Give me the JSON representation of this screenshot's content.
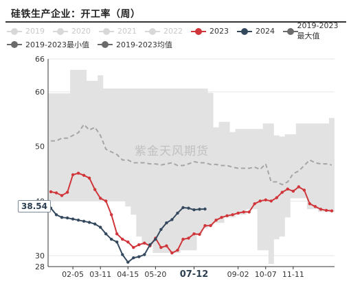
{
  "title": "硅铁生产企业：开工率（周）",
  "watermark": "紫金天风期货",
  "value_badge": "38.54",
  "colors": {
    "band": "#e2e2e2",
    "avg": "#a5a5a5",
    "s2023": "#d0353a",
    "s2024": "#34495e",
    "grid": "#e6e6e6",
    "axis": "#333333",
    "legend_off": "#c8c8c8",
    "legend_max": "#6b6b6b"
  },
  "legend": [
    {
      "name": "2019",
      "state": "off"
    },
    {
      "name": "2020",
      "state": "off"
    },
    {
      "name": "2021",
      "state": "off"
    },
    {
      "name": "2022",
      "state": "off"
    },
    {
      "name": "2023",
      "state": "on",
      "color": "#d0353a"
    },
    {
      "name": "2024",
      "state": "on",
      "color": "#34495e"
    },
    {
      "name": "2019-2023最大值",
      "state": "on",
      "color": "#6b6b6b"
    },
    {
      "name": "2019-2023最小值",
      "state": "on",
      "color": "#6b6b6b"
    },
    {
      "name": "2019-2023均值",
      "state": "on",
      "color": "#6b6b6b"
    }
  ],
  "chart_data": {
    "type": "line",
    "title": "硅铁生产企业：开工率（周）",
    "y_axis": {
      "min": 28,
      "max": 66,
      "ticks": [
        28,
        30,
        40,
        50,
        60,
        66
      ]
    },
    "x_axis": {
      "points": 52,
      "tick_labels": [
        "02-05",
        "03-11",
        "04-15",
        "05-20",
        "07-12",
        "09-02",
        "10-07",
        "11-11"
      ],
      "tick_index": [
        4,
        9,
        14,
        19,
        26,
        34,
        39,
        44
      ],
      "highlighted": "07-12"
    },
    "series": [
      {
        "name": "2019-2023最大值",
        "type": "band-upper",
        "values": [
          59.7,
          59.7,
          59.7,
          59.7,
          64,
          64,
          64,
          62,
          62,
          63,
          60.6,
          60.6,
          60.6,
          60.6,
          60.6,
          60.6,
          60.6,
          60.6,
          60.6,
          60.6,
          60.6,
          60.6,
          60.6,
          60.6,
          60.6,
          60.6,
          60.6,
          60.6,
          60.6,
          59.8,
          53.5,
          54.5,
          54.5,
          52.6,
          53.2,
          53.2,
          53.2,
          53.2,
          53.2,
          54.2,
          54.2,
          52,
          51.8,
          52.2,
          52.2,
          54.2,
          54.2,
          54.2,
          54.2,
          54.2,
          54.2,
          55.2
        ]
      },
      {
        "name": "2019-2023最小值",
        "type": "band-lower",
        "values": [
          40,
          40,
          40,
          40,
          40,
          40,
          40,
          40,
          40,
          40,
          40,
          40,
          40,
          40,
          39,
          37.5,
          33.5,
          32,
          32,
          30.5,
          30.5,
          30.5,
          30.5,
          30.5,
          31,
          31,
          31,
          34,
          35,
          35.5,
          36,
          36,
          37,
          37,
          37.5,
          37.5,
          38.5,
          38.5,
          31,
          31,
          28.5,
          33,
          33.5,
          37,
          40.5,
          40.5,
          40.5,
          38.5,
          38.5,
          38,
          38,
          38
        ]
      },
      {
        "name": "2019-2023均值",
        "values": [
          51,
          51,
          51.5,
          51.5,
          52,
          52.5,
          54,
          53,
          53.5,
          52,
          49.5,
          49,
          48.5,
          47.5,
          47.5,
          47,
          47,
          47,
          46.8,
          46.8,
          46.6,
          46.8,
          47,
          46.5,
          46.5,
          46.8,
          47.2,
          47,
          47,
          46.7,
          46.7,
          46.5,
          46.5,
          46.2,
          46,
          46,
          46,
          46.2,
          45.8,
          46.8,
          43.5,
          43.5,
          43,
          43.5,
          45,
          45.5,
          46.5,
          47.5,
          47,
          46.8,
          46.8,
          46.6
        ]
      },
      {
        "name": "2023",
        "values": [
          41.7,
          41.5,
          41,
          41.6,
          44.8,
          45.1,
          44.7,
          44.2,
          42.1,
          40.5,
          40,
          37.5,
          34,
          33,
          32.5,
          31.5,
          32,
          32.3,
          31.8,
          33.2,
          31.5,
          31.8,
          30.5,
          31,
          33,
          33.2,
          34,
          33.9,
          35.5,
          35.5,
          36.5,
          37,
          37.3,
          37.5,
          37.8,
          38,
          38,
          39.5,
          40,
          40.2,
          40,
          40.6,
          41.6,
          42.2,
          41.8,
          42.6,
          42,
          39.5,
          39,
          38.5,
          38.3,
          38.2
        ]
      },
      {
        "name": "2024",
        "values": [
          38.7,
          37.5,
          37,
          36.9,
          36.7,
          36.5,
          36.3,
          36.1,
          35.8,
          35.2,
          34,
          33,
          32.5,
          30.2,
          28.8,
          29.6,
          29.8,
          30.2,
          32,
          33,
          34.8,
          36,
          36.6,
          37.8,
          38.8,
          38.7,
          38.4,
          38.5,
          38.54
        ]
      }
    ]
  }
}
